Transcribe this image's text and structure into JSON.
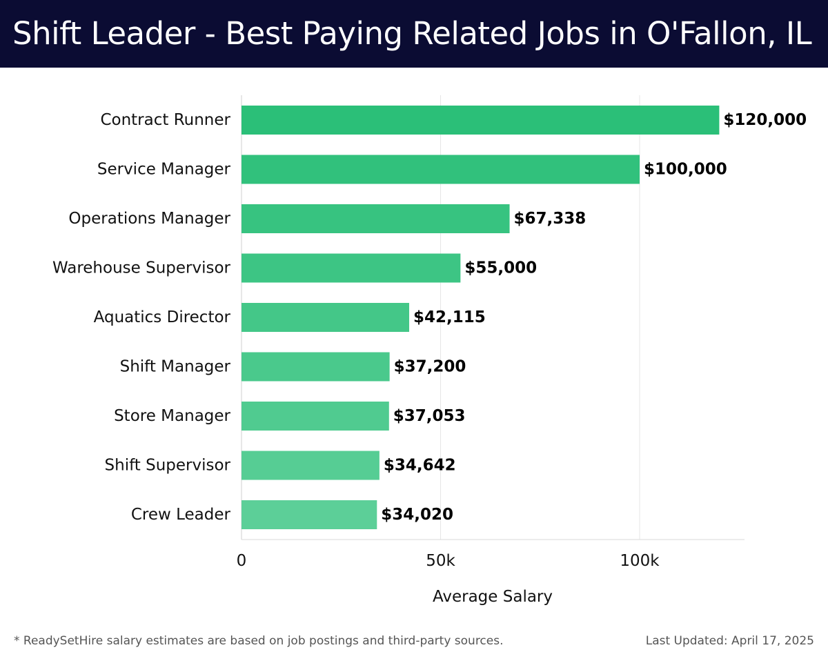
{
  "header": {
    "title": "Shift Leader - Best Paying Related Jobs in O'Fallon, IL"
  },
  "footer": {
    "note": "* ReadySetHire salary estimates are based on job postings and third-party sources.",
    "updated": "Last Updated: April 17, 2025"
  },
  "colors": {
    "header_bg": "#0b0c33",
    "bar_top": "#2bbf78",
    "bar_bottom": "#5ccf98"
  },
  "chart_data": {
    "type": "bar",
    "orientation": "horizontal",
    "title": "Shift Leader - Best Paying Related Jobs in O'Fallon, IL",
    "xlabel": "Average Salary",
    "ylabel": "",
    "xlim": [
      0,
      126000
    ],
    "x_ticks": [
      0,
      50000,
      100000
    ],
    "x_tick_labels": [
      "0",
      "50k",
      "100k"
    ],
    "grid": "vertical",
    "categories": [
      "Contract Runner",
      "Service Manager",
      "Operations Manager",
      "Warehouse Supervisor",
      "Aquatics Director",
      "Shift Manager",
      "Store Manager",
      "Shift Supervisor",
      "Crew Leader"
    ],
    "values": [
      120000,
      100000,
      67338,
      55000,
      42115,
      37200,
      37053,
      34642,
      34020
    ],
    "value_labels": [
      "$120,000",
      "$100,000",
      "$67,338",
      "$55,000",
      "$42,115",
      "$37,200",
      "$37,053",
      "$34,642",
      "$34,020"
    ]
  }
}
